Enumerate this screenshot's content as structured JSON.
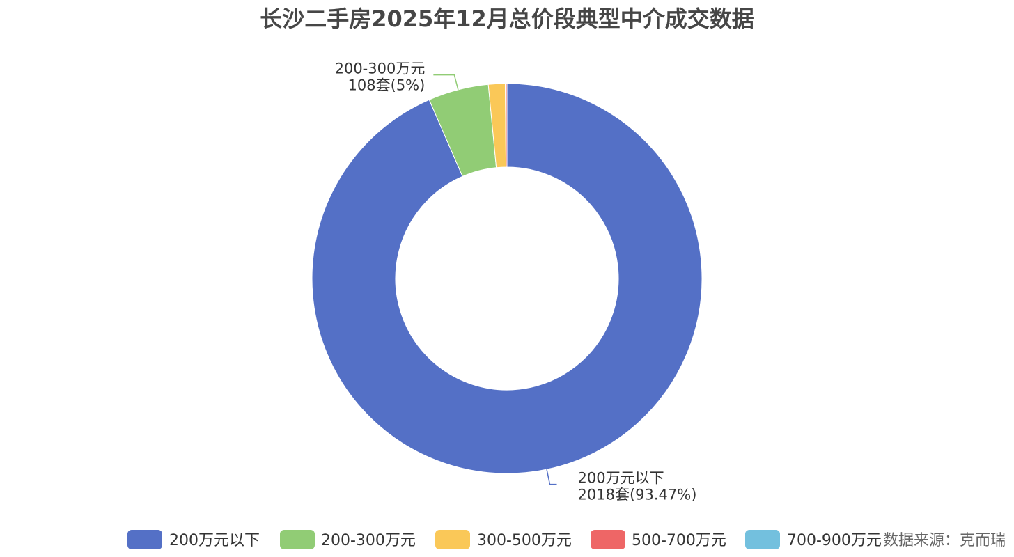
{
  "chart_data": {
    "type": "pie",
    "title": "长沙二手房2025年12月总价段典型中介成交数据",
    "categories": [
      "200万元以下",
      "200-300万元",
      "300-500万元",
      "500-700万元",
      "700-900万元"
    ],
    "values": [
      2018,
      108,
      30,
      3,
      0
    ],
    "colors": [
      "#5470c6",
      "#91cc75",
      "#fac858",
      "#ee6666",
      "#73c0de"
    ],
    "legend_position": "bottom",
    "labels": [
      {
        "index": 0,
        "name": "200万元以下",
        "detail": "2018套(93.47%)"
      },
      {
        "index": 1,
        "name": "200-300万元",
        "detail": "108套(5%)"
      }
    ]
  },
  "source": "数据来源：克而瑞"
}
